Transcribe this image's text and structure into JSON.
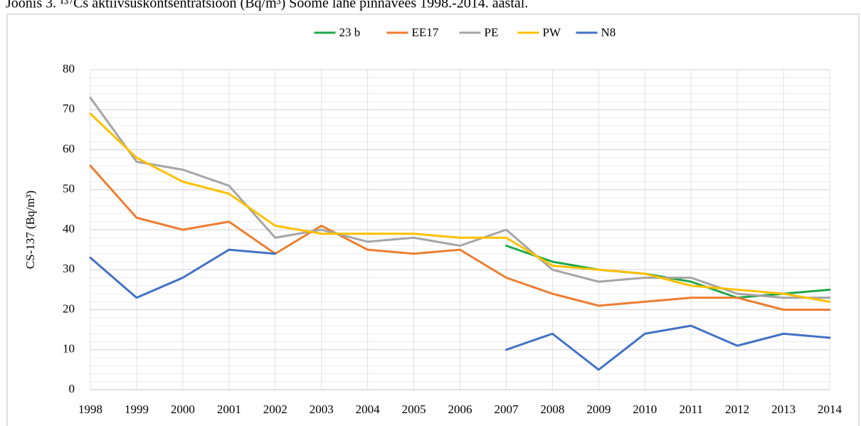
{
  "chart_data": {
    "type": "line",
    "title": "Joonis 3.   ¹³⁷Cs aktiivsuskontsentratsioon (Bq/m³) Soome lahe pinnavees 1998.-2014. aastal.",
    "y_label": "CS-137 (Bq/m³)",
    "categories": [
      "1998",
      "1999",
      "2000",
      "2001",
      "2002",
      "2003",
      "2004",
      "2005",
      "2006",
      "2007",
      "2008",
      "2009",
      "2010",
      "2011",
      "2012",
      "2013",
      "2014"
    ],
    "series": [
      {
        "name": "23 b",
        "color": "#1fa84a",
        "values": [
          null,
          null,
          null,
          null,
          null,
          null,
          null,
          null,
          null,
          36,
          32,
          30,
          29,
          27,
          23,
          24,
          25
        ]
      },
      {
        "name": "EE17",
        "color": "#ed7d31",
        "values": [
          56,
          43,
          40,
          42,
          34,
          41,
          35,
          34,
          35,
          28,
          24,
          21,
          22,
          23,
          23,
          20,
          20
        ]
      },
      {
        "name": "PE",
        "color": "#a5a5a5",
        "values": [
          73,
          57,
          55,
          51,
          38,
          40,
          37,
          38,
          36,
          40,
          30,
          27,
          28,
          28,
          24,
          23,
          23
        ]
      },
      {
        "name": "PW",
        "color": "#ffc000",
        "values": [
          69,
          58,
          52,
          49,
          41,
          39,
          39,
          39,
          38,
          38,
          31,
          30,
          29,
          26,
          25,
          24,
          22
        ]
      },
      {
        "name": "N8",
        "color": "#4472c4",
        "values": [
          33,
          23,
          28,
          35,
          34,
          null,
          null,
          null,
          null,
          10,
          14,
          5,
          14,
          16,
          11,
          14,
          13
        ]
      }
    ],
    "ylim": [
      0,
      80
    ],
    "yticks": [
      0,
      10,
      20,
      30,
      40,
      50,
      60,
      70,
      80
    ],
    "grid": true,
    "legend": "top"
  }
}
